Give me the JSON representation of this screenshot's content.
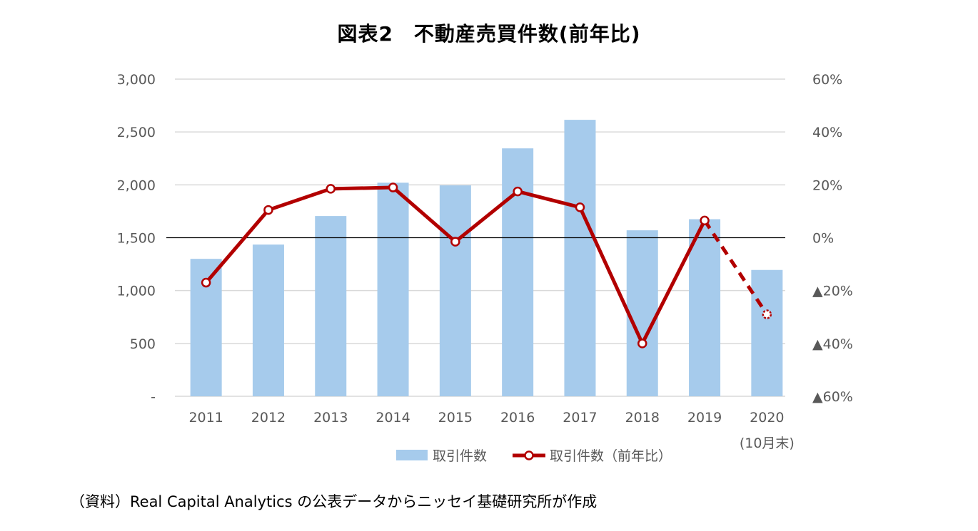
{
  "title": "図表2　不動産売買件数(前年比)",
  "source": "（資料）Real Capital Analytics の公表データからニッセイ基礎研究所が作成",
  "colors": {
    "bar": "#a6cbec",
    "line": "#b20000",
    "grid": "#d9d9d9",
    "zero_line": "#000000",
    "tick_text": "#595959"
  },
  "chart_data": {
    "type": "bar",
    "categories": [
      "2011",
      "2012",
      "2013",
      "2014",
      "2015",
      "2016",
      "2017",
      "2018",
      "2019",
      "2020"
    ],
    "category_sublabels": [
      "",
      "",
      "",
      "",
      "",
      "",
      "",
      "",
      "",
      "(10月末)"
    ],
    "series": [
      {
        "name": "取引件数",
        "type": "bar",
        "axis": "left",
        "values": [
          1300,
          1435,
          1705,
          2020,
          1995,
          2345,
          2615,
          1570,
          1675,
          1195
        ]
      },
      {
        "name": "取引件数（前年比）",
        "type": "line",
        "axis": "right",
        "unit": "%",
        "values": [
          -17,
          10.5,
          18.5,
          19,
          -1.5,
          17.5,
          11.5,
          -40,
          6.5,
          -29
        ],
        "dashed_segments_from_index": 8
      }
    ],
    "y_left": {
      "range": [
        0,
        3000
      ],
      "ticks": [
        0,
        500,
        1000,
        1500,
        2000,
        2500,
        3000
      ],
      "tick_labels": [
        "-",
        "500",
        "1,000",
        "1,500",
        "2,000",
        "2,500",
        "3,000"
      ]
    },
    "y_right": {
      "range": [
        -60,
        60
      ],
      "ticks": [
        -60,
        -40,
        -20,
        0,
        20,
        40,
        60
      ],
      "tick_labels": [
        "▲60%",
        "▲40%",
        "▲20%",
        "0%",
        "20%",
        "40%",
        "60%"
      ]
    },
    "grid": true,
    "legend": {
      "position": "bottom",
      "entries": [
        "取引件数",
        "取引件数（前年比）"
      ]
    }
  }
}
